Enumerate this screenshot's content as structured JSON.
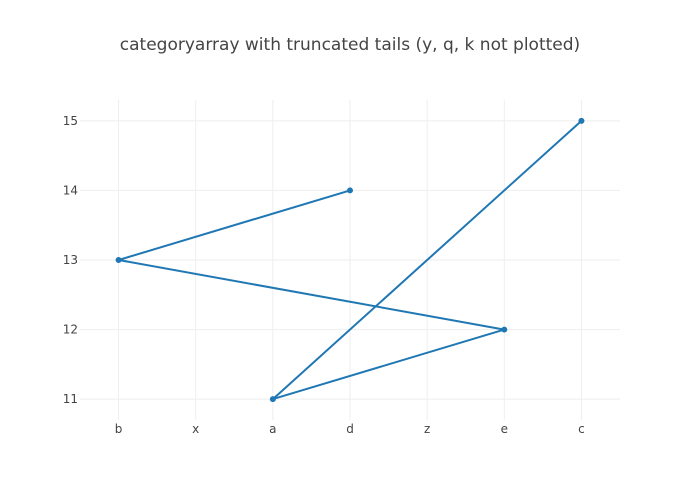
{
  "chart_data": {
    "type": "line",
    "title": "categoryarray with truncated tails (y, q, k not plotted)",
    "xlabel": "",
    "ylabel": "",
    "categories": [
      "b",
      "x",
      "a",
      "d",
      "z",
      "e",
      "c"
    ],
    "ylim": [
      10.7,
      15.3
    ],
    "yticks": [
      11,
      12,
      13,
      14,
      15
    ],
    "grid": true,
    "legend": "none",
    "series": [
      {
        "mode": "lines+markers",
        "color": "#1f77b4",
        "x": [
          "d",
          "b",
          "e",
          "a",
          "c"
        ],
        "y": [
          14,
          13,
          12,
          11,
          15
        ]
      }
    ]
  }
}
